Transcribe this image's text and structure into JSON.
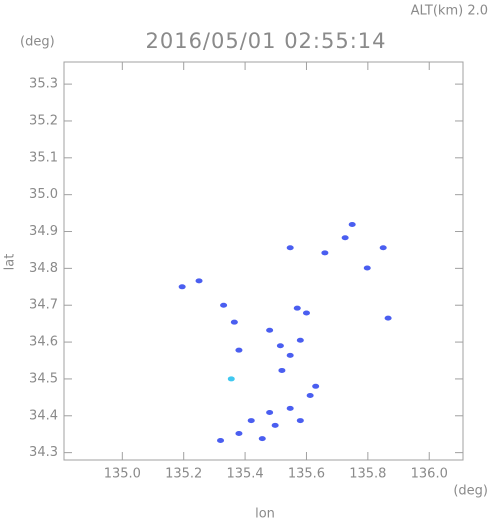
{
  "chart_data": {
    "type": "scatter",
    "title": "2016/05/01 02:55:14",
    "subtitle": "ALT(km) 2.0",
    "ylabel": "lat",
    "xlabel": "lon",
    "yunit": "(deg)",
    "xunit": "(deg)",
    "xlim": [
      134.81,
      136.11
    ],
    "ylim": [
      34.28,
      35.36
    ],
    "xticks": [
      {
        "value": 135,
        "label": "135.0"
      },
      135.2,
      135.4,
      135.6,
      135.8,
      {
        "value": 136,
        "label": "136.0"
      }
    ],
    "yticks": [
      34.3,
      34.4,
      34.5,
      34.6,
      34.7,
      34.8,
      34.9,
      {
        "value": 35,
        "label": "35.0"
      },
      35.1,
      35.2,
      35.3
    ],
    "series": [
      {
        "color": "#4a5ef0",
        "x": [
          135.195,
          135.25,
          135.33,
          135.365,
          135.38,
          135.32,
          135.38,
          135.42,
          135.48,
          135.547,
          135.58,
          135.612,
          135.63,
          135.48,
          135.515,
          135.547,
          135.58,
          135.57,
          135.6,
          135.547,
          135.66,
          135.726,
          135.749,
          135.798,
          135.85,
          135.866,
          135.52,
          135.456,
          135.498
        ],
        "values": [
          34.75,
          34.766,
          34.7,
          34.654,
          34.578,
          34.333,
          34.352,
          34.387,
          34.409,
          34.42,
          34.387,
          34.455,
          34.48,
          34.632,
          34.59,
          34.564,
          34.605,
          34.692,
          34.679,
          34.856,
          34.842,
          34.883,
          34.919,
          34.801,
          34.856,
          34.665,
          34.523,
          34.338,
          34.374
        ]
      },
      {
        "color": "#40c8f0",
        "x": [
          135.355
        ],
        "values": [
          34.5
        ]
      }
    ]
  }
}
